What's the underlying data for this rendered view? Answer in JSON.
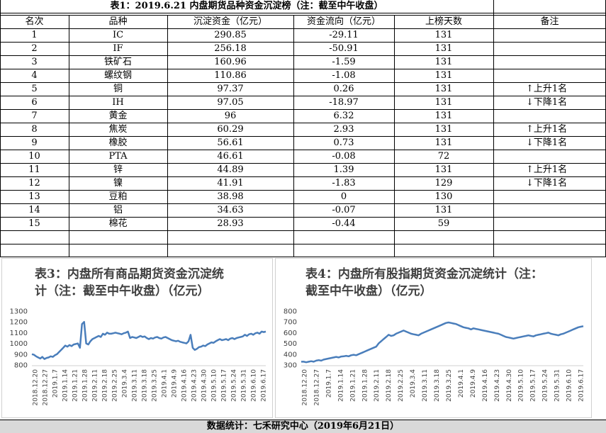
{
  "table": {
    "title": "表1：2019.6.21 内盘期货品种资金沉淀榜（注：截至中午收盘）",
    "headers": [
      "名次",
      "品种",
      "沉淀资金（亿元）",
      "资金流向（亿元）",
      "上榜天数",
      "备注"
    ],
    "rows": [
      {
        "rank": "1",
        "name": "IC",
        "capital": "290.85",
        "flow": "-29.11",
        "days": "131",
        "note": ""
      },
      {
        "rank": "2",
        "name": "IF",
        "capital": "256.18",
        "flow": "-50.91",
        "days": "131",
        "note": ""
      },
      {
        "rank": "3",
        "name": "铁矿石",
        "capital": "160.96",
        "flow": "-1.59",
        "days": "131",
        "note": ""
      },
      {
        "rank": "4",
        "name": "螺纹钢",
        "capital": "110.86",
        "flow": "-1.08",
        "days": "131",
        "note": ""
      },
      {
        "rank": "5",
        "name": "铜",
        "capital": "97.37",
        "flow": "0.26",
        "days": "131",
        "note": "↑上升1名"
      },
      {
        "rank": "6",
        "name": "IH",
        "capital": "97.05",
        "flow": "-18.97",
        "days": "131",
        "note": "↓下降1名"
      },
      {
        "rank": "7",
        "name": "黄金",
        "capital": "96",
        "flow": "6.32",
        "days": "131",
        "note": ""
      },
      {
        "rank": "8",
        "name": "焦炭",
        "capital": "60.29",
        "flow": "2.93",
        "days": "131",
        "note": "↑上升1名"
      },
      {
        "rank": "9",
        "name": "橡胶",
        "capital": "56.61",
        "flow": "0.73",
        "days": "131",
        "note": "↓下降1名"
      },
      {
        "rank": "10",
        "name": "PTA",
        "capital": "46.61",
        "flow": "-0.08",
        "days": "72",
        "note": ""
      },
      {
        "rank": "11",
        "name": "锌",
        "capital": "44.89",
        "flow": "1.39",
        "days": "131",
        "note": "↑上升1名"
      },
      {
        "rank": "12",
        "name": "镍",
        "capital": "41.91",
        "flow": "-1.83",
        "days": "129",
        "note": "↓下降1名"
      },
      {
        "rank": "13",
        "name": "豆粕",
        "capital": "38.98",
        "flow": "0",
        "days": "130",
        "note": ""
      },
      {
        "rank": "14",
        "name": "铝",
        "capital": "34.63",
        "flow": "-0.07",
        "days": "131",
        "note": ""
      },
      {
        "rank": "15",
        "name": "棉花",
        "capital": "28.93",
        "flow": "-0.44",
        "days": "59",
        "note": ""
      }
    ]
  },
  "chart_data": [
    {
      "type": "line",
      "title": "表3：内盘所有商品期货资金沉淀统\n计（注：截至中午收盘）（亿元）",
      "ylim": [
        800,
        1300
      ],
      "yticks": [
        "800",
        "900",
        "1000",
        "1100",
        "1200",
        "1300"
      ],
      "xticks": [
        "2018.12.20",
        "2018.12.27",
        "2019.1.7",
        "2019.1.14",
        "2019.1.21",
        "2019.1.28",
        "2019.2.11",
        "2019.2.18",
        "2019.2.25",
        "2019.3.4",
        "2019.3.11",
        "2019.3.18",
        "2019.3.25",
        "2019.4.1",
        "2019.4.9",
        "2019.4.16",
        "2019.4.23",
        "2019.4.30",
        "2019.5.10",
        "2019.5.17",
        "2019.5.24",
        "2019.5.31",
        "2019.6.10",
        "2019.6.17"
      ],
      "color": "#4a7ebb",
      "values": [
        900,
        895,
        880,
        870,
        860,
        875,
        855,
        865,
        870,
        880,
        875,
        890,
        900,
        920,
        940,
        960,
        980,
        970,
        985,
        975,
        990,
        995,
        1000,
        960,
        1180,
        1200,
        1000,
        990,
        1020,
        1040,
        1050,
        1060,
        1070,
        1060,
        1090,
        1080,
        1100,
        1090,
        1090,
        1095,
        1100,
        1095,
        1090,
        1085,
        1095,
        1100,
        1110,
        1050,
        1060,
        1055,
        1050,
        1060,
        1070,
        1060,
        1065,
        1050,
        1040,
        1050,
        1045,
        1055,
        1060,
        1050,
        1045,
        1055,
        1060,
        1050,
        1040,
        1030,
        1025,
        1020,
        1025,
        1015,
        1010,
        1005,
        1000,
        1020,
        1080,
        960,
        940,
        950,
        965,
        970,
        980,
        975,
        990,
        1000,
        1010,
        1005,
        1020,
        1030,
        1040,
        1030,
        1035,
        1040,
        1030,
        1045,
        1050,
        1040,
        1050,
        1055,
        1060,
        1065,
        1080,
        1070,
        1085,
        1090,
        1080,
        1095,
        1100,
        1090,
        1110,
        1105,
        1110
      ]
    },
    {
      "type": "line",
      "title": "表4：内盘所有股指期货资金沉淀统计（注：\n截至中午收盘）（亿元）",
      "ylim": [
        300,
        800
      ],
      "yticks": [
        "300",
        "400",
        "500",
        "600",
        "700",
        "800"
      ],
      "xticks": [
        "2018.12.20",
        "2018.12.27",
        "2019.1.7",
        "2019.1.14",
        "2019.1.21",
        "2019.1.28",
        "2019.2.11",
        "2019.2.18",
        "2019.2.25",
        "2019.3.4",
        "2019.3.11",
        "2019.3.18",
        "2019.3.25",
        "2019.4.1",
        "2019.4.9",
        "2019.4.16",
        "2019.4.23",
        "2019.4.30",
        "2019.5.10",
        "2019.5.17",
        "2019.5.24",
        "2019.5.31",
        "2019.6.10",
        "2019.6.17"
      ],
      "color": "#4a7ebb",
      "values": [
        330,
        330,
        325,
        330,
        335,
        330,
        340,
        345,
        340,
        350,
        355,
        360,
        365,
        370,
        375,
        370,
        378,
        380,
        385,
        380,
        390,
        395,
        390,
        400,
        410,
        420,
        430,
        440,
        450,
        460,
        470,
        500,
        520,
        540,
        560,
        580,
        570,
        575,
        590,
        600,
        610,
        620,
        610,
        600,
        590,
        585,
        580,
        575,
        590,
        600,
        610,
        620,
        630,
        640,
        650,
        660,
        670,
        680,
        690,
        695,
        690,
        685,
        680,
        670,
        660,
        650,
        645,
        640,
        630,
        640,
        635,
        630,
        625,
        620,
        615,
        610,
        605,
        600,
        595,
        590,
        580,
        570,
        560,
        555,
        550,
        545,
        550,
        555,
        560,
        565,
        570,
        575,
        570,
        565,
        575,
        580,
        585,
        590,
        595,
        600,
        590,
        585,
        580,
        575,
        585,
        590,
        600,
        610,
        620,
        630,
        640,
        650,
        655,
        660
      ]
    }
  ],
  "footer": "数据统计：七禾研究中心（2019年6月21日）"
}
